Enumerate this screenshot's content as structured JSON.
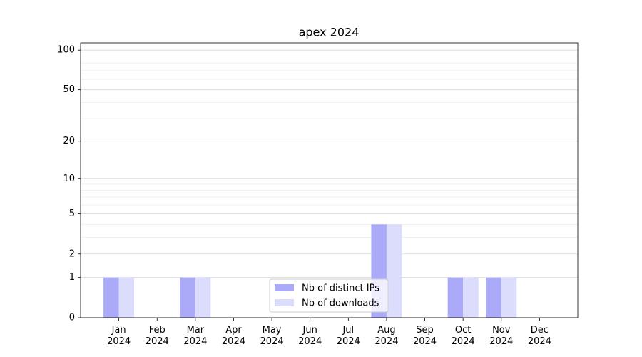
{
  "chart_data": {
    "type": "bar",
    "title": "apex 2024",
    "categories": [
      "Jan 2024",
      "Feb 2024",
      "Mar 2024",
      "Apr 2024",
      "May 2024",
      "Jun 2024",
      "Jul 2024",
      "Aug 2024",
      "Sep 2024",
      "Oct 2024",
      "Nov 2024",
      "Dec 2024"
    ],
    "series": [
      {
        "name": "Nb of distinct IPs",
        "color": "#aaaaf9",
        "values": [
          1,
          0,
          1,
          0,
          0,
          0,
          0,
          4,
          0,
          1,
          1,
          0
        ]
      },
      {
        "name": "Nb of downloads",
        "color": "#dcdcfc",
        "values": [
          1,
          0,
          1,
          0,
          0,
          0,
          0,
          4,
          0,
          1,
          1,
          0
        ]
      }
    ],
    "yscale": "log1p",
    "ylim": [
      0,
      113.5
    ],
    "yticks": [
      0,
      1,
      2,
      5,
      10,
      20,
      50,
      100
    ],
    "minor_yticks": [
      3,
      4,
      6,
      7,
      8,
      9,
      30,
      40,
      60,
      70,
      80,
      90
    ],
    "grid": true,
    "legend": "lower center"
  }
}
